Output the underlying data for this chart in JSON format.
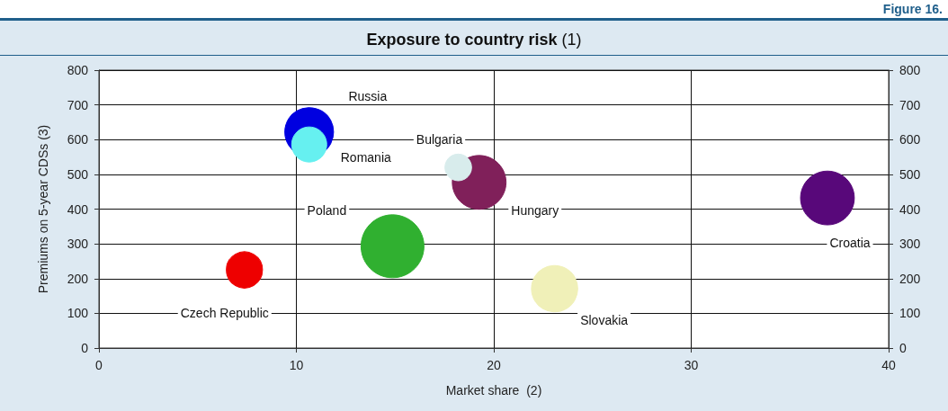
{
  "chart_data": {
    "type": "bubble",
    "title": "Exposure to country risk (1)",
    "xlabel": "Market share  (2)",
    "ylabel": "Premiums on 5-year CDSs (3)",
    "annotations": [
      "Figure 16."
    ],
    "xlim": [
      0,
      40
    ],
    "xticks": [
      0,
      10,
      20,
      30,
      40
    ],
    "ylim": [
      0,
      800
    ],
    "yticks": [
      0,
      100,
      200,
      300,
      400,
      500,
      600,
      700,
      800
    ],
    "y2lim": [
      0,
      800
    ],
    "y2ticks": [
      0,
      100,
      200,
      300,
      400,
      500,
      600,
      700,
      800
    ],
    "grid": true,
    "marker": "circle",
    "series": [
      {
        "name": "Russia",
        "color": "#0000e0",
        "x": [
          10.65
        ],
        "values": [
          622
        ],
        "sizes": [
          0.6
        ]
      },
      {
        "name": "Romania",
        "color": "#66f0f0",
        "x": [
          10.65
        ],
        "values": [
          586
        ],
        "sizes": [
          0.31
        ]
      },
      {
        "name": "Hungary",
        "color": "#80205a",
        "x": [
          19.26
        ],
        "values": [
          477
        ],
        "sizes": [
          0.73
        ]
      },
      {
        "name": "Bulgaria",
        "color": "#d8ecec",
        "x": [
          18.2
        ],
        "values": [
          520
        ],
        "sizes": [
          0.18
        ]
      },
      {
        "name": "Poland",
        "color": "#30b030",
        "x": [
          14.87
        ],
        "values": [
          293
        ],
        "sizes": [
          1
        ]
      },
      {
        "name": "Czech Republic",
        "color": "#ee0000",
        "x": [
          7.37
        ],
        "values": [
          225
        ],
        "sizes": [
          0.33
        ]
      },
      {
        "name": "Slovakia",
        "color": "#f0f0b8",
        "x": [
          23.08
        ],
        "values": [
          171
        ],
        "sizes": [
          0.54
        ]
      },
      {
        "name": "Croatia",
        "color": "#58087a",
        "x": [
          36.9
        ],
        "values": [
          432
        ],
        "sizes": [
          0.73
        ]
      }
    ]
  }
}
